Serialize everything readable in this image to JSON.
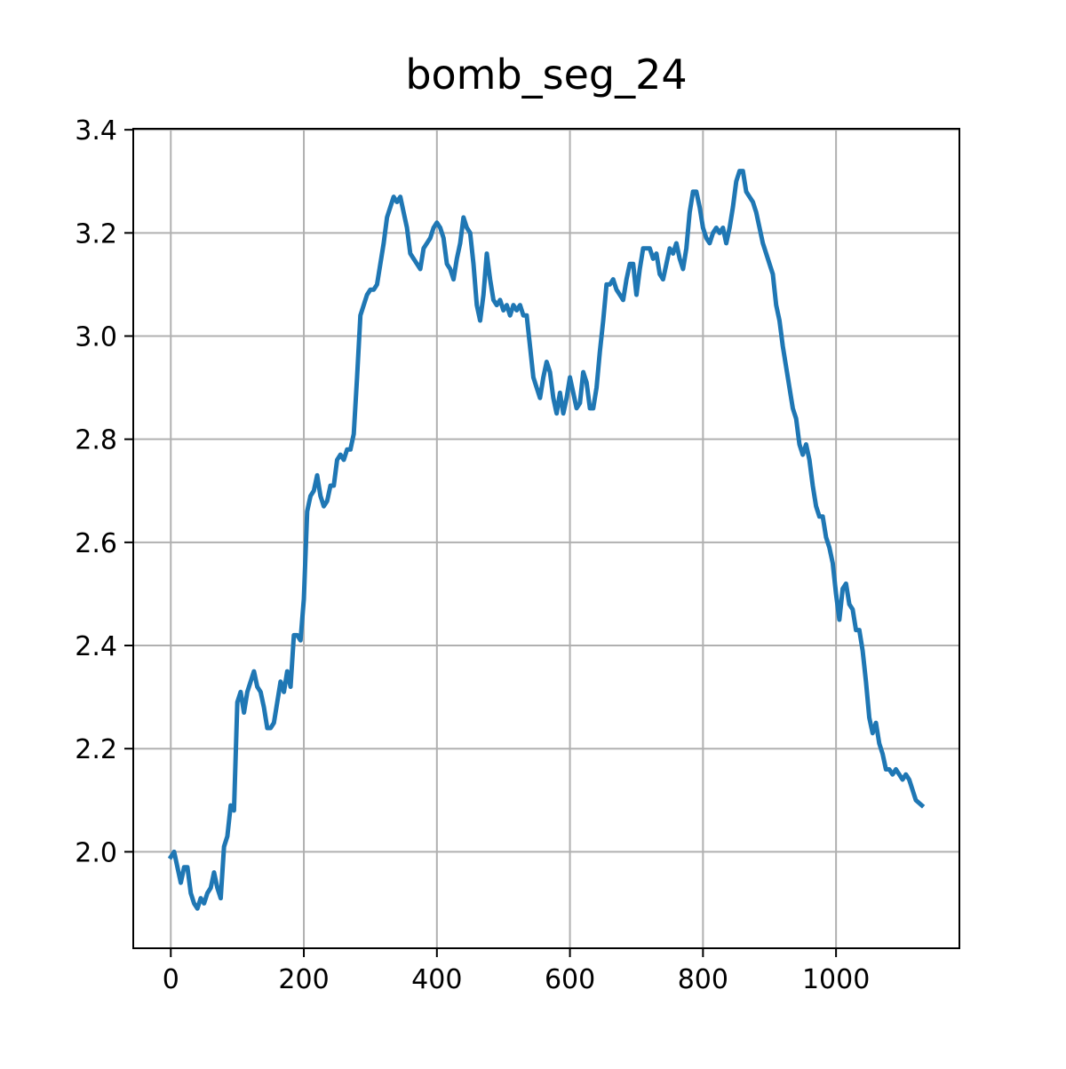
{
  "chart_data": {
    "type": "line",
    "title": "bomb_seg_24",
    "x": [
      0,
      5,
      10,
      15,
      20,
      25,
      30,
      35,
      40,
      45,
      50,
      55,
      60,
      65,
      70,
      75,
      80,
      85,
      90,
      95,
      100,
      105,
      110,
      115,
      120,
      125,
      130,
      135,
      140,
      145,
      150,
      155,
      160,
      165,
      170,
      175,
      180,
      185,
      190,
      195,
      200,
      205,
      210,
      215,
      220,
      225,
      230,
      235,
      240,
      245,
      250,
      255,
      260,
      265,
      270,
      275,
      280,
      285,
      290,
      295,
      300,
      305,
      310,
      315,
      320,
      325,
      330,
      335,
      340,
      345,
      350,
      355,
      360,
      365,
      370,
      375,
      380,
      385,
      390,
      395,
      400,
      405,
      410,
      415,
      420,
      425,
      430,
      435,
      440,
      445,
      450,
      455,
      460,
      465,
      470,
      475,
      480,
      485,
      490,
      495,
      500,
      505,
      510,
      515,
      520,
      525,
      530,
      535,
      540,
      545,
      550,
      555,
      560,
      565,
      570,
      575,
      580,
      585,
      590,
      595,
      600,
      605,
      610,
      615,
      620,
      625,
      630,
      635,
      640,
      645,
      650,
      655,
      660,
      665,
      670,
      675,
      680,
      685,
      690,
      695,
      700,
      705,
      710,
      715,
      720,
      725,
      730,
      735,
      740,
      745,
      750,
      755,
      760,
      765,
      770,
      775,
      780,
      785,
      790,
      795,
      800,
      805,
      810,
      815,
      820,
      825,
      830,
      835,
      840,
      845,
      850,
      855,
      860,
      865,
      870,
      875,
      880,
      885,
      890,
      895,
      900,
      905,
      910,
      915,
      920,
      925,
      930,
      935,
      940,
      945,
      950,
      955,
      960,
      965,
      970,
      975,
      980,
      985,
      990,
      995,
      1000,
      1005,
      1010,
      1015,
      1020,
      1025,
      1030,
      1035,
      1040,
      1045,
      1050,
      1055,
      1060,
      1065,
      1070,
      1075,
      1080,
      1085,
      1090,
      1095,
      1100,
      1105,
      1110,
      1115,
      1120,
      1129
    ],
    "series": [
      {
        "name": "bomb_seg_24",
        "color": "#1f77b4",
        "values": [
          1.99,
          2.0,
          1.97,
          1.94,
          1.97,
          1.97,
          1.92,
          1.9,
          1.89,
          1.91,
          1.9,
          1.92,
          1.93,
          1.96,
          1.93,
          1.91,
          2.01,
          2.03,
          2.09,
          2.08,
          2.29,
          2.31,
          2.27,
          2.31,
          2.33,
          2.35,
          2.32,
          2.31,
          2.28,
          2.24,
          2.24,
          2.25,
          2.29,
          2.33,
          2.31,
          2.35,
          2.32,
          2.42,
          2.42,
          2.41,
          2.49,
          2.66,
          2.69,
          2.7,
          2.73,
          2.69,
          2.67,
          2.68,
          2.71,
          2.71,
          2.76,
          2.77,
          2.76,
          2.78,
          2.78,
          2.81,
          2.92,
          3.04,
          3.06,
          3.08,
          3.09,
          3.09,
          3.1,
          3.14,
          3.18,
          3.23,
          3.25,
          3.27,
          3.26,
          3.27,
          3.24,
          3.21,
          3.16,
          3.15,
          3.14,
          3.13,
          3.17,
          3.18,
          3.19,
          3.21,
          3.22,
          3.21,
          3.19,
          3.14,
          3.13,
          3.11,
          3.15,
          3.18,
          3.23,
          3.21,
          3.2,
          3.14,
          3.06,
          3.03,
          3.08,
          3.16,
          3.11,
          3.07,
          3.06,
          3.07,
          3.05,
          3.06,
          3.04,
          3.06,
          3.05,
          3.06,
          3.04,
          3.04,
          2.98,
          2.92,
          2.9,
          2.88,
          2.92,
          2.95,
          2.93,
          2.88,
          2.85,
          2.89,
          2.85,
          2.88,
          2.92,
          2.89,
          2.86,
          2.87,
          2.93,
          2.91,
          2.86,
          2.86,
          2.9,
          2.97,
          3.03,
          3.1,
          3.1,
          3.11,
          3.09,
          3.08,
          3.07,
          3.11,
          3.14,
          3.14,
          3.08,
          3.13,
          3.17,
          3.17,
          3.17,
          3.15,
          3.16,
          3.12,
          3.11,
          3.14,
          3.17,
          3.16,
          3.18,
          3.15,
          3.13,
          3.17,
          3.24,
          3.28,
          3.28,
          3.25,
          3.21,
          3.19,
          3.18,
          3.2,
          3.21,
          3.2,
          3.21,
          3.18,
          3.21,
          3.25,
          3.3,
          3.32,
          3.32,
          3.28,
          3.27,
          3.26,
          3.24,
          3.21,
          3.18,
          3.16,
          3.14,
          3.12,
          3.06,
          3.03,
          2.98,
          2.94,
          2.9,
          2.86,
          2.84,
          2.79,
          2.77,
          2.79,
          2.76,
          2.71,
          2.67,
          2.65,
          2.65,
          2.61,
          2.59,
          2.56,
          2.5,
          2.45,
          2.51,
          2.52,
          2.48,
          2.47,
          2.43,
          2.43,
          2.39,
          2.33,
          2.26,
          2.23,
          2.25,
          2.21,
          2.19,
          2.16,
          2.16,
          2.15,
          2.16,
          2.15,
          2.14,
          2.15,
          2.14,
          2.12,
          2.1,
          2.09
        ]
      }
    ],
    "xlim": [
      -56.45,
      1185.45
    ],
    "ylim": [
      1.813,
      3.402
    ],
    "xticks": [
      0,
      200,
      400,
      600,
      800,
      1000
    ],
    "yticks": [
      {
        "value": 2,
        "label": "2.0"
      },
      2.2,
      2.4,
      2.6,
      2.8,
      {
        "value": 3,
        "label": "3.0"
      },
      3.2,
      3.4
    ],
    "grid": true
  }
}
